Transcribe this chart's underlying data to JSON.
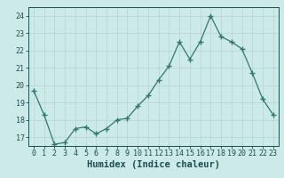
{
  "x": [
    0,
    1,
    2,
    3,
    4,
    5,
    6,
    7,
    8,
    9,
    10,
    11,
    12,
    13,
    14,
    15,
    16,
    17,
    18,
    19,
    20,
    21,
    22,
    23
  ],
  "y": [
    19.7,
    18.3,
    16.6,
    16.7,
    17.5,
    17.6,
    17.2,
    17.5,
    18.0,
    18.1,
    18.8,
    19.4,
    20.3,
    21.1,
    22.5,
    21.5,
    22.5,
    24.0,
    22.8,
    22.5,
    22.1,
    20.7,
    19.2,
    18.3
  ],
  "line_color": "#2d7a6e",
  "marker": "+",
  "marker_size": 4,
  "marker_lw": 1.0,
  "bg_color": "#cceae8",
  "grid_color": "#b8d8d5",
  "xlabel": "Humidex (Indice chaleur)",
  "ylim": [
    16.5,
    24.5
  ],
  "yticks": [
    17,
    18,
    19,
    20,
    21,
    22,
    23,
    24
  ],
  "xticks": [
    0,
    1,
    2,
    3,
    4,
    5,
    6,
    7,
    8,
    9,
    10,
    11,
    12,
    13,
    14,
    15,
    16,
    17,
    18,
    19,
    20,
    21,
    22,
    23
  ],
  "font_color": "#1a5050",
  "tick_fontsize": 6.0,
  "xlabel_fontsize": 7.5,
  "line_width": 0.9
}
